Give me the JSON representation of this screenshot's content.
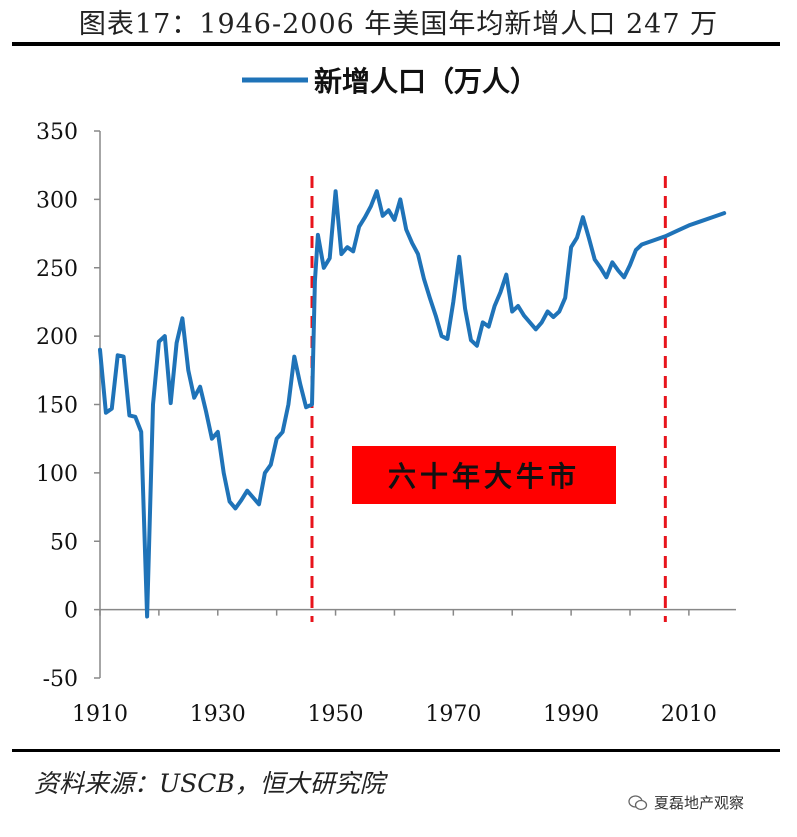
{
  "figure": {
    "title": "图表17：1946-2006 年美国年均新增人口 247 万",
    "source": "资料来源：USCB，恒大研究院",
    "watermark": "夏磊地产观察"
  },
  "chart_data": {
    "type": "line",
    "title": "图表17：1946-2006 年美国年均新增人口 247 万",
    "xlabel": "",
    "ylabel": "",
    "xlim": [
      1910,
      2018
    ],
    "ylim": [
      -50,
      350
    ],
    "x_ticks": [
      "1910",
      "1930",
      "1950",
      "1970",
      "1990",
      "2010"
    ],
    "y_ticks": [
      "350",
      "300",
      "250",
      "200",
      "150",
      "100",
      "50",
      "0",
      "-50"
    ],
    "legend": {
      "label": "新增人口（万人）",
      "position": "top-center"
    },
    "annotation": {
      "text": "六十年大牛市",
      "color": "#ff0000"
    },
    "reference_lines": [
      1946,
      2006
    ],
    "series": [
      {
        "name": "新增人口（万人）",
        "color": "#1f73b8",
        "points": [
          [
            1910,
            190
          ],
          [
            1911,
            144
          ],
          [
            1912,
            147
          ],
          [
            1913,
            186
          ],
          [
            1914,
            185
          ],
          [
            1915,
            142
          ],
          [
            1916,
            141
          ],
          [
            1917,
            130
          ],
          [
            1918,
            -5
          ],
          [
            1919,
            150
          ],
          [
            1920,
            196
          ],
          [
            1921,
            200
          ],
          [
            1922,
            151
          ],
          [
            1923,
            195
          ],
          [
            1924,
            213
          ],
          [
            1925,
            175
          ],
          [
            1926,
            155
          ],
          [
            1927,
            163
          ],
          [
            1928,
            145
          ],
          [
            1929,
            125
          ],
          [
            1930,
            130
          ],
          [
            1931,
            100
          ],
          [
            1932,
            79
          ],
          [
            1933,
            74
          ],
          [
            1934,
            80
          ],
          [
            1935,
            87
          ],
          [
            1936,
            82
          ],
          [
            1937,
            77
          ],
          [
            1938,
            100
          ],
          [
            1939,
            106
          ],
          [
            1940,
            125
          ],
          [
            1941,
            130
          ],
          [
            1942,
            150
          ],
          [
            1943,
            185
          ],
          [
            1944,
            165
          ],
          [
            1945,
            148
          ],
          [
            1946,
            150
          ],
          [
            1946.5,
            240
          ],
          [
            1947,
            274
          ],
          [
            1948,
            250
          ],
          [
            1949,
            257
          ],
          [
            1950,
            306
          ],
          [
            1951,
            260
          ],
          [
            1952,
            265
          ],
          [
            1953,
            262
          ],
          [
            1954,
            280
          ],
          [
            1955,
            287
          ],
          [
            1956,
            295
          ],
          [
            1957,
            306
          ],
          [
            1958,
            288
          ],
          [
            1959,
            292
          ],
          [
            1960,
            285
          ],
          [
            1961,
            300
          ],
          [
            1962,
            278
          ],
          [
            1963,
            268
          ],
          [
            1964,
            260
          ],
          [
            1965,
            242
          ],
          [
            1966,
            228
          ],
          [
            1967,
            215
          ],
          [
            1968,
            200
          ],
          [
            1969,
            198
          ],
          [
            1970,
            225
          ],
          [
            1971,
            258
          ],
          [
            1972,
            220
          ],
          [
            1973,
            197
          ],
          [
            1974,
            193
          ],
          [
            1975,
            210
          ],
          [
            1976,
            207
          ],
          [
            1977,
            222
          ],
          [
            1978,
            232
          ],
          [
            1979,
            245
          ],
          [
            1980,
            218
          ],
          [
            1981,
            222
          ],
          [
            1982,
            215
          ],
          [
            1983,
            210
          ],
          [
            1984,
            205
          ],
          [
            1985,
            210
          ],
          [
            1986,
            218
          ],
          [
            1987,
            214
          ],
          [
            1988,
            218
          ],
          [
            1989,
            228
          ],
          [
            1990,
            265
          ],
          [
            1991,
            272
          ],
          [
            1992,
            287
          ],
          [
            1993,
            272
          ],
          [
            1994,
            256
          ],
          [
            1995,
            250
          ],
          [
            1996,
            243
          ],
          [
            1997,
            254
          ],
          [
            1998,
            248
          ],
          [
            1999,
            243
          ],
          [
            2000,
            252
          ],
          [
            2001,
            263
          ],
          [
            2002,
            267
          ],
          [
            2004,
            270
          ],
          [
            2006,
            273
          ],
          [
            2008,
            277
          ],
          [
            2010,
            281
          ],
          [
            2012,
            284
          ],
          [
            2014,
            287
          ],
          [
            2016,
            290
          ]
        ]
      }
    ]
  }
}
